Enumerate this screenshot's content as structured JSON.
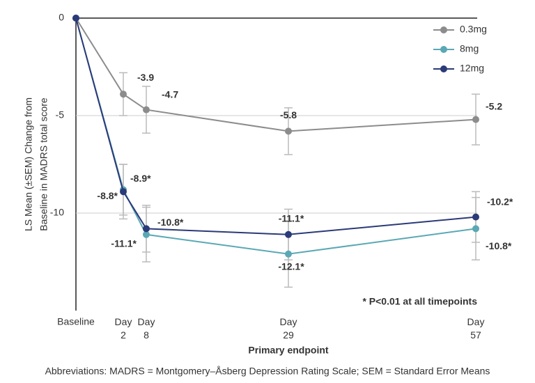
{
  "chart_data": {
    "type": "line",
    "ylabel": [
      "LS Mean (±SEM) Change from",
      "Baseline  in MADRS total score"
    ],
    "xlabel": "Primary endpoint",
    "annotation": "* P<0.01 at all timepoints",
    "footnote": "Abbreviations: MADRS = Montgomery–Åsberg Depression Rating Scale; SEM = Standard Error Means",
    "categories": [
      "Baseline",
      "Day 2",
      "Day 8",
      "Day 29",
      "Day 57"
    ],
    "ylim": [
      -15,
      0
    ],
    "yticks": [
      0,
      -5,
      -10
    ],
    "grid": true,
    "legend": "top-right",
    "series": [
      {
        "name": "0.3mg",
        "color": "#8c8c8c",
        "values": [
          0,
          -3.9,
          -4.7,
          -5.8,
          -5.2
        ],
        "errors": [
          null,
          1.1,
          1.2,
          1.2,
          1.3
        ],
        "value_labels": [
          null,
          "-3.9",
          "-4.7",
          "-5.8",
          "-5.2"
        ]
      },
      {
        "name": "8mg",
        "color": "#5aa8b5",
        "values": [
          0,
          -8.8,
          -11.1,
          -12.1,
          -10.8
        ],
        "errors": [
          null,
          1.3,
          1.4,
          1.7,
          1.6
        ],
        "value_labels": [
          null,
          "-8.8*",
          "-11.1*",
          "-12.1*",
          "-10.8*"
        ]
      },
      {
        "name": "12mg",
        "color": "#2b3a78",
        "values": [
          0,
          -8.9,
          -10.8,
          -11.1,
          -10.2
        ],
        "errors": [
          null,
          1.4,
          1.2,
          1.3,
          1.3
        ],
        "value_labels": [
          null,
          "-8.9*",
          "-10.8*",
          "-11.1*",
          "-10.2*"
        ]
      }
    ]
  }
}
